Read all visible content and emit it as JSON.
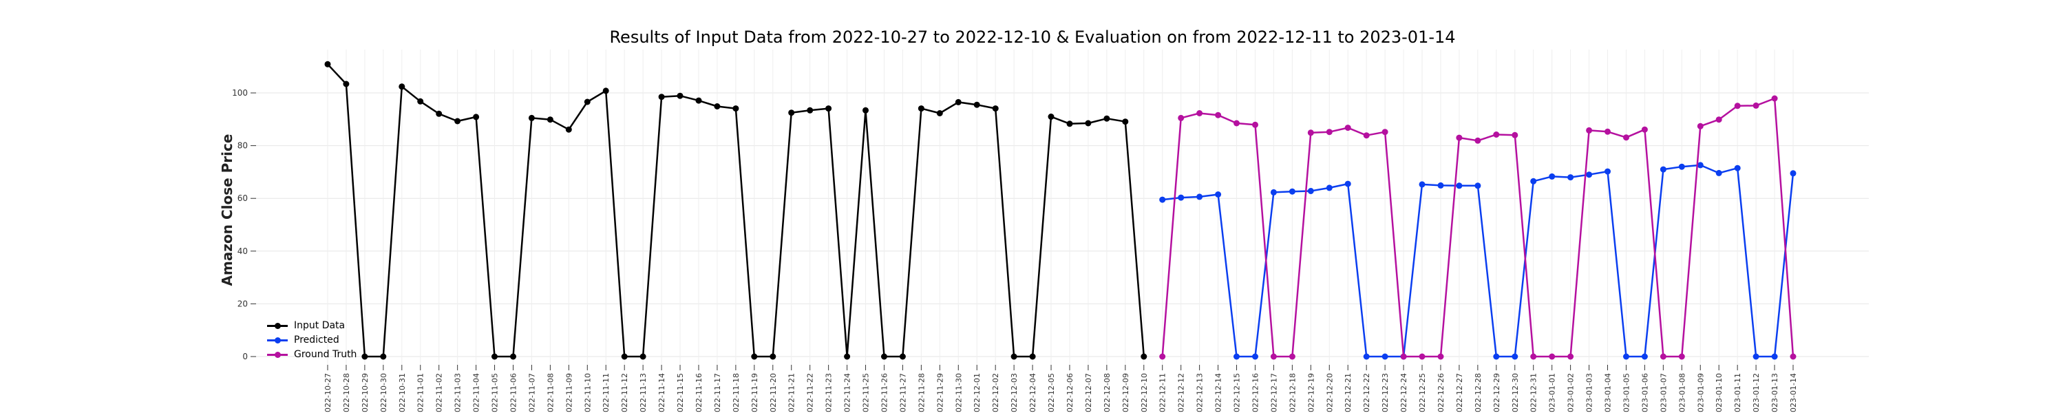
{
  "chart_data": {
    "type": "line",
    "title": "Results of Input Data from 2022-10-27 to 2022-12-10 & Evaluation on from 2022-12-11 to 2023-01-14",
    "xlabel": "",
    "ylabel": "Amazon Close Price",
    "ylim": [
      -5,
      117
    ],
    "yticks": [
      0,
      20,
      40,
      60,
      80,
      100
    ],
    "grid": true,
    "legend_position": "lower-left",
    "x": [
      "2022-10-27",
      "2022-10-28",
      "2022-10-29",
      "2022-10-30",
      "2022-10-31",
      "2022-11-01",
      "2022-11-02",
      "2022-11-03",
      "2022-11-04",
      "2022-11-05",
      "2022-11-06",
      "2022-11-07",
      "2022-11-08",
      "2022-11-09",
      "2022-11-10",
      "2022-11-11",
      "2022-11-12",
      "2022-11-13",
      "2022-11-14",
      "2022-11-15",
      "2022-11-16",
      "2022-11-17",
      "2022-11-18",
      "2022-11-19",
      "2022-11-20",
      "2022-11-21",
      "2022-11-22",
      "2022-11-23",
      "2022-11-24",
      "2022-11-25",
      "2022-11-26",
      "2022-11-27",
      "2022-11-28",
      "2022-11-29",
      "2022-11-30",
      "2022-12-01",
      "2022-12-02",
      "2022-12-03",
      "2022-12-04",
      "2022-12-05",
      "2022-12-06",
      "2022-12-07",
      "2022-12-08",
      "2022-12-09",
      "2022-12-10",
      "2022-12-11",
      "2022-12-12",
      "2022-12-13",
      "2022-12-14",
      "2022-12-15",
      "2022-12-16",
      "2022-12-17",
      "2022-12-18",
      "2022-12-19",
      "2022-12-20",
      "2022-12-21",
      "2022-12-22",
      "2022-12-23",
      "2022-12-24",
      "2022-12-25",
      "2022-12-26",
      "2022-12-27",
      "2022-12-28",
      "2022-12-29",
      "2022-12-30",
      "2022-12-31",
      "2023-01-01",
      "2023-01-02",
      "2023-01-03",
      "2023-01-04",
      "2023-01-05",
      "2023-01-06",
      "2023-01-07",
      "2023-01-08",
      "2023-01-09",
      "2023-01-10",
      "2023-01-11",
      "2023-01-12",
      "2023-01-13",
      "2023-01-14"
    ],
    "x_tick_labels": [
      "022-10-27",
      "022-10-28",
      "022-10-29",
      "022-10-30",
      "022-10-31",
      "022-11-01",
      "022-11-02",
      "022-11-03",
      "022-11-04",
      "022-11-05",
      "022-11-06",
      "022-11-07",
      "022-11-08",
      "022-11-09",
      "022-11-10",
      "022-11-11",
      "022-11-12",
      "022-11-13",
      "022-11-14",
      "022-11-15",
      "022-11-16",
      "022-11-17",
      "022-11-18",
      "022-11-19",
      "022-11-20",
      "022-11-21",
      "022-11-22",
      "022-11-23",
      "022-11-24",
      "022-11-25",
      "022-11-26",
      "022-11-27",
      "022-11-28",
      "022-11-29",
      "022-11-30",
      "022-12-01",
      "022-12-02",
      "022-12-03",
      "022-12-04",
      "022-12-05",
      "022-12-06",
      "022-12-07",
      "022-12-08",
      "022-12-09",
      "022-12-10",
      "022-12-11",
      "022-12-12",
      "022-12-13",
      "022-12-14",
      "022-12-15",
      "022-12-16",
      "022-12-17",
      "022-12-18",
      "022-12-19",
      "022-12-20",
      "022-12-21",
      "022-12-22",
      "022-12-23",
      "022-12-24",
      "022-12-25",
      "022-12-26",
      "022-12-27",
      "022-12-28",
      "022-12-29",
      "022-12-30",
      "022-12-31",
      "023-01-01",
      "023-01-02",
      "023-01-03",
      "023-01-04",
      "023-01-05",
      "023-01-06",
      "023-01-07",
      "023-01-08",
      "023-01-09",
      "023-01-10",
      "023-01-11",
      "023-01-12",
      "023-01-13",
      "023-01-14"
    ],
    "series": [
      {
        "name": "Input Data",
        "color": "#000000",
        "x": [
          "2022-10-27",
          "2022-10-28",
          "2022-10-29",
          "2022-10-30",
          "2022-10-31",
          "2022-11-01",
          "2022-11-02",
          "2022-11-03",
          "2022-11-04",
          "2022-11-05",
          "2022-11-06",
          "2022-11-07",
          "2022-11-08",
          "2022-11-09",
          "2022-11-10",
          "2022-11-11",
          "2022-11-12",
          "2022-11-13",
          "2022-11-14",
          "2022-11-15",
          "2022-11-16",
          "2022-11-17",
          "2022-11-18",
          "2022-11-19",
          "2022-11-20",
          "2022-11-21",
          "2022-11-22",
          "2022-11-23",
          "2022-11-24",
          "2022-11-25",
          "2022-11-26",
          "2022-11-27",
          "2022-11-28",
          "2022-11-29",
          "2022-11-30",
          "2022-12-01",
          "2022-12-02",
          "2022-12-03",
          "2022-12-04",
          "2022-12-05",
          "2022-12-06",
          "2022-12-07",
          "2022-12-08",
          "2022-12-09",
          "2022-12-10"
        ],
        "values": [
          110.9,
          103.4,
          0,
          0,
          102.4,
          96.8,
          92.1,
          89.3,
          90.9,
          0,
          0,
          90.5,
          89.9,
          86.1,
          96.6,
          100.8,
          0,
          0,
          98.5,
          98.9,
          97.1,
          94.9,
          94.1,
          0,
          0,
          92.5,
          93.4,
          94.1,
          0,
          93.4,
          0,
          0,
          94.1,
          92.3,
          96.5,
          95.5,
          94.1,
          0,
          0,
          91.0,
          88.3,
          88.5,
          90.3,
          89.1,
          0
        ]
      },
      {
        "name": "Predicted",
        "color": "#0a3ef0",
        "x": [
          "2022-12-11",
          "2022-12-12",
          "2022-12-13",
          "2022-12-14",
          "2022-12-15",
          "2022-12-16",
          "2022-12-17",
          "2022-12-18",
          "2022-12-19",
          "2022-12-20",
          "2022-12-21",
          "2022-12-22",
          "2022-12-23",
          "2022-12-24",
          "2022-12-25",
          "2022-12-26",
          "2022-12-27",
          "2022-12-28",
          "2022-12-29",
          "2022-12-30",
          "2022-12-31",
          "2023-01-01",
          "2023-01-02",
          "2023-01-03",
          "2023-01-04",
          "2023-01-05",
          "2023-01-06",
          "2023-01-07",
          "2023-01-08",
          "2023-01-09",
          "2023-01-10",
          "2023-01-11",
          "2023-01-12",
          "2023-01-13",
          "2023-01-14"
        ],
        "values": [
          59.5,
          60.3,
          60.6,
          61.5,
          0,
          0,
          62.3,
          62.6,
          62.8,
          64.0,
          65.5,
          0,
          0,
          0,
          65.3,
          64.9,
          64.8,
          64.8,
          0,
          0,
          66.5,
          68.3,
          68.0,
          69.0,
          70.2,
          0,
          0,
          71.0,
          72.0,
          72.6,
          69.6,
          71.5,
          0,
          0,
          69.5
        ]
      },
      {
        "name": "Ground Truth",
        "color": "#b5109f",
        "x": [
          "2022-12-11",
          "2022-12-12",
          "2022-12-13",
          "2022-12-14",
          "2022-12-15",
          "2022-12-16",
          "2022-12-17",
          "2022-12-18",
          "2022-12-19",
          "2022-12-20",
          "2022-12-21",
          "2022-12-22",
          "2022-12-23",
          "2022-12-24",
          "2022-12-25",
          "2022-12-26",
          "2022-12-27",
          "2022-12-28",
          "2022-12-29",
          "2022-12-30",
          "2022-12-31",
          "2023-01-01",
          "2023-01-02",
          "2023-01-03",
          "2023-01-04",
          "2023-01-05",
          "2023-01-06",
          "2023-01-07",
          "2023-01-08",
          "2023-01-09",
          "2023-01-10",
          "2023-01-11",
          "2023-01-12",
          "2023-01-13",
          "2023-01-14"
        ],
        "values": [
          0,
          90.5,
          92.3,
          91.6,
          88.5,
          87.9,
          0,
          0,
          84.9,
          85.2,
          86.8,
          83.9,
          85.2,
          0,
          0,
          0,
          83.0,
          81.9,
          84.2,
          84.0,
          0,
          0,
          0,
          85.8,
          85.3,
          83.1,
          86.1,
          0,
          0,
          87.4,
          89.9,
          95.1,
          95.2,
          97.9,
          0
        ]
      }
    ]
  }
}
